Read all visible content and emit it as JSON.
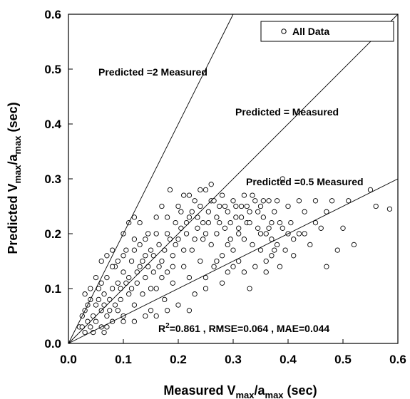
{
  "chart_data": {
    "type": "scatter",
    "xlabel": {
      "main": "Measured V",
      "sub1": "max",
      "sep": "/a",
      "sub2": "max",
      "tail": " (sec)"
    },
    "ylabel": {
      "main": "Predicted V",
      "sub1": "max",
      "sep": "/a",
      "sub2": "max",
      "tail": " (sec)"
    },
    "xlim": [
      0,
      0.6
    ],
    "ylim": [
      0,
      0.6
    ],
    "xticks": [
      "0.0",
      "0.1",
      "0.2",
      "0.3",
      "0.4",
      "0.5",
      "0.6"
    ],
    "yticks": [
      "0.0",
      "0.1",
      "0.2",
      "0.3",
      "0.4",
      "0.5",
      "0.6"
    ],
    "grid": false,
    "legend": {
      "position": "top-right",
      "label": "All Data"
    },
    "reference_lines": [
      {
        "label": "Predicted =2 Measured",
        "slope": 2
      },
      {
        "label": "Predicted = Measured",
        "slope": 1
      },
      {
        "label": "Predicted =0.5 Measured",
        "slope": 0.5
      }
    ],
    "stats_annotation": {
      "r_sup": "2",
      "prefix": "R",
      "text": "=0.861 , RMSE=0.064 , MAE=0.044"
    },
    "series": [
      {
        "marker": "open-circle",
        "points": [
          [
            0.02,
            0.03
          ],
          [
            0.025,
            0.05
          ],
          [
            0.03,
            0.02
          ],
          [
            0.03,
            0.06
          ],
          [
            0.035,
            0.04
          ],
          [
            0.04,
            0.08
          ],
          [
            0.04,
            0.03
          ],
          [
            0.045,
            0.05
          ],
          [
            0.05,
            0.07
          ],
          [
            0.05,
            0.04
          ],
          [
            0.055,
            0.1
          ],
          [
            0.06,
            0.06
          ],
          [
            0.06,
            0.03
          ],
          [
            0.065,
            0.09
          ],
          [
            0.07,
            0.05
          ],
          [
            0.07,
            0.12
          ],
          [
            0.075,
            0.08
          ],
          [
            0.08,
            0.04
          ],
          [
            0.08,
            0.1
          ],
          [
            0.085,
            0.14
          ],
          [
            0.09,
            0.06
          ],
          [
            0.09,
            0.11
          ],
          [
            0.095,
            0.08
          ],
          [
            0.1,
            0.13
          ],
          [
            0.1,
            0.05
          ],
          [
            0.105,
            0.17
          ],
          [
            0.11,
            0.09
          ],
          [
            0.11,
            0.12
          ],
          [
            0.115,
            0.15
          ],
          [
            0.12,
            0.07
          ],
          [
            0.12,
            0.19
          ],
          [
            0.125,
            0.11
          ],
          [
            0.13,
            0.14
          ],
          [
            0.13,
            0.22
          ],
          [
            0.135,
            0.09
          ],
          [
            0.14,
            0.16
          ],
          [
            0.14,
            0.12
          ],
          [
            0.145,
            0.2
          ],
          [
            0.15,
            0.06
          ],
          [
            0.15,
            0.17
          ],
          [
            0.155,
            0.13
          ],
          [
            0.16,
            0.23
          ],
          [
            0.16,
            0.1
          ],
          [
            0.165,
            0.18
          ],
          [
            0.17,
            0.15
          ],
          [
            0.17,
            0.25
          ],
          [
            0.175,
            0.08
          ],
          [
            0.18,
            0.2
          ],
          [
            0.18,
            0.13
          ],
          [
            0.185,
            0.28
          ],
          [
            0.19,
            0.16
          ],
          [
            0.19,
            0.11
          ],
          [
            0.195,
            0.22
          ],
          [
            0.2,
            0.19
          ],
          [
            0.2,
            0.07
          ],
          [
            0.205,
            0.24
          ],
          [
            0.21,
            0.14
          ],
          [
            0.21,
            0.27
          ],
          [
            0.215,
            0.2
          ],
          [
            0.22,
            0.12
          ],
          [
            0.22,
            0.23
          ],
          [
            0.225,
            0.17
          ],
          [
            0.23,
            0.26
          ],
          [
            0.23,
            0.09
          ],
          [
            0.235,
            0.21
          ],
          [
            0.24,
            0.15
          ],
          [
            0.24,
            0.25
          ],
          [
            0.245,
            0.19
          ],
          [
            0.25,
            0.28
          ],
          [
            0.25,
            0.12
          ],
          [
            0.255,
            0.22
          ],
          [
            0.26,
            0.18
          ],
          [
            0.26,
            0.26
          ],
          [
            0.265,
            0.14
          ],
          [
            0.27,
            0.23
          ],
          [
            0.27,
            0.2
          ],
          [
            0.275,
            0.25
          ],
          [
            0.28,
            0.16
          ],
          [
            0.28,
            0.27
          ],
          [
            0.285,
            0.21
          ],
          [
            0.29,
            0.24
          ],
          [
            0.29,
            0.13
          ],
          [
            0.295,
            0.19
          ],
          [
            0.3,
            0.26
          ],
          [
            0.3,
            0.17
          ],
          [
            0.305,
            0.23
          ],
          [
            0.31,
            0.21
          ],
          [
            0.31,
            0.15
          ],
          [
            0.315,
            0.25
          ],
          [
            0.32,
            0.19
          ],
          [
            0.32,
            0.27
          ],
          [
            0.325,
            0.22
          ],
          [
            0.33,
            0.1
          ],
          [
            0.33,
            0.24
          ],
          [
            0.335,
            0.18
          ],
          [
            0.34,
            0.26
          ],
          [
            0.34,
            0.14
          ],
          [
            0.345,
            0.21
          ],
          [
            0.35,
            0.25
          ],
          [
            0.35,
            0.17
          ],
          [
            0.355,
            0.23
          ],
          [
            0.36,
            0.2
          ],
          [
            0.36,
            0.13
          ],
          [
            0.365,
            0.26
          ],
          [
            0.37,
            0.16
          ],
          [
            0.37,
            0.22
          ],
          [
            0.375,
            0.24
          ],
          [
            0.38,
            0.18
          ],
          [
            0.38,
            0.26
          ],
          [
            0.385,
            0.14
          ],
          [
            0.39,
            0.3
          ],
          [
            0.39,
            0.21
          ],
          [
            0.395,
            0.17
          ],
          [
            0.4,
            0.25
          ],
          [
            0.4,
            0.2
          ],
          [
            0.405,
            0.22
          ],
          [
            0.41,
            0.16
          ],
          [
            0.42,
            0.26
          ],
          [
            0.42,
            0.2
          ],
          [
            0.43,
            0.24
          ],
          [
            0.44,
            0.18
          ],
          [
            0.45,
            0.26
          ],
          [
            0.46,
            0.21
          ],
          [
            0.47,
            0.14
          ],
          [
            0.48,
            0.26
          ],
          [
            0.49,
            0.17
          ],
          [
            0.5,
            0.21
          ],
          [
            0.51,
            0.26
          ],
          [
            0.52,
            0.18
          ],
          [
            0.55,
            0.28
          ],
          [
            0.56,
            0.25
          ],
          [
            0.585,
            0.245
          ],
          [
            0.06,
            0.15
          ],
          [
            0.07,
            0.16
          ],
          [
            0.08,
            0.17
          ],
          [
            0.09,
            0.15
          ],
          [
            0.1,
            0.2
          ],
          [
            0.11,
            0.22
          ],
          [
            0.12,
            0.23
          ],
          [
            0.13,
            0.18
          ],
          [
            0.05,
            0.12
          ],
          [
            0.04,
            0.1
          ],
          [
            0.035,
            0.07
          ],
          [
            0.03,
            0.09
          ],
          [
            0.025,
            0.03
          ],
          [
            0.045,
            0.02
          ],
          [
            0.065,
            0.02
          ],
          [
            0.07,
            0.03
          ],
          [
            0.1,
            0.04
          ],
          [
            0.12,
            0.04
          ],
          [
            0.14,
            0.05
          ],
          [
            0.16,
            0.05
          ],
          [
            0.18,
            0.06
          ],
          [
            0.15,
            0.1
          ],
          [
            0.17,
            0.12
          ],
          [
            0.19,
            0.14
          ],
          [
            0.21,
            0.17
          ],
          [
            0.23,
            0.19
          ],
          [
            0.25,
            0.2
          ],
          [
            0.27,
            0.15
          ],
          [
            0.29,
            0.18
          ],
          [
            0.31,
            0.2
          ],
          [
            0.33,
            0.22
          ],
          [
            0.35,
            0.2
          ],
          [
            0.37,
            0.19
          ],
          [
            0.26,
            0.29
          ],
          [
            0.24,
            0.28
          ],
          [
            0.22,
            0.27
          ],
          [
            0.2,
            0.25
          ],
          [
            0.18,
            0.23
          ],
          [
            0.16,
            0.2
          ],
          [
            0.14,
            0.19
          ],
          [
            0.12,
            0.17
          ],
          [
            0.1,
            0.16
          ],
          [
            0.08,
            0.14
          ],
          [
            0.06,
            0.11
          ],
          [
            0.055,
            0.08
          ],
          [
            0.065,
            0.07
          ],
          [
            0.075,
            0.06
          ],
          [
            0.085,
            0.07
          ],
          [
            0.095,
            0.1
          ],
          [
            0.105,
            0.11
          ],
          [
            0.115,
            0.1
          ],
          [
            0.125,
            0.13
          ],
          [
            0.135,
            0.15
          ],
          [
            0.145,
            0.14
          ],
          [
            0.155,
            0.16
          ],
          [
            0.165,
            0.14
          ],
          [
            0.175,
            0.17
          ],
          [
            0.185,
            0.19
          ],
          [
            0.195,
            0.18
          ],
          [
            0.205,
            0.21
          ],
          [
            0.215,
            0.22
          ],
          [
            0.225,
            0.24
          ],
          [
            0.235,
            0.23
          ],
          [
            0.245,
            0.22
          ],
          [
            0.255,
            0.24
          ],
          [
            0.265,
            0.26
          ],
          [
            0.275,
            0.22
          ],
          [
            0.285,
            0.25
          ],
          [
            0.295,
            0.22
          ],
          [
            0.305,
            0.25
          ],
          [
            0.315,
            0.23
          ],
          [
            0.325,
            0.25
          ],
          [
            0.335,
            0.27
          ],
          [
            0.345,
            0.24
          ],
          [
            0.355,
            0.26
          ],
          [
            0.365,
            0.21
          ],
          [
            0.375,
            0.17
          ],
          [
            0.385,
            0.22
          ],
          [
            0.22,
            0.06
          ],
          [
            0.25,
            0.1
          ],
          [
            0.28,
            0.11
          ],
          [
            0.3,
            0.14
          ],
          [
            0.32,
            0.13
          ],
          [
            0.36,
            0.15
          ],
          [
            0.41,
            0.19
          ],
          [
            0.43,
            0.2
          ],
          [
            0.45,
            0.22
          ],
          [
            0.47,
            0.24
          ]
        ]
      }
    ]
  }
}
